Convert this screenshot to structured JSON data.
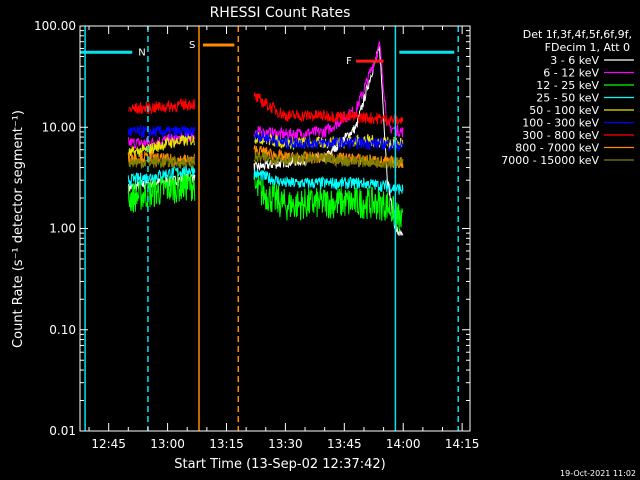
{
  "colors": {
    "background": "#000000",
    "axes": "#ffffff",
    "marker_cyan": "#00e5ee",
    "marker_orange": "#ff8c00",
    "flare_red": "#ff1a1a"
  },
  "chart_data": {
    "type": "line",
    "title": "RHESSI Count Rates",
    "xlabel": "Start Time (13-Sep-02 12:37:42)",
    "ylabel": "Count Rate (s⁻¹ detector segment⁻¹)",
    "yscale": "log",
    "ylim": [
      0.01,
      100
    ],
    "xlim": [
      "12:37:42",
      "14:17:00"
    ],
    "x_ticks": [
      "12:45",
      "13:00",
      "13:15",
      "13:30",
      "13:45",
      "14:00",
      "14:15"
    ],
    "y_ticks": [
      "0.01",
      "0.10",
      "1.00",
      "10.00",
      "100.00"
    ],
    "footer_date": "19-Oct-2021 11:02",
    "legend": {
      "header_lines": [
        "Det 1f,3f,4f,5f,6f,9f,",
        "FDecim 1, Att 0"
      ],
      "position": "right"
    },
    "segments": [
      {
        "start": "12:50:00",
        "end": "13:07:00"
      },
      {
        "start": "13:22:00",
        "end": "14:00:00"
      }
    ],
    "series": [
      {
        "name": "3 - 6 keV",
        "color": "#ffffff",
        "values": [
          [
            "12:50",
            2.5
          ],
          [
            "12:55",
            2.8
          ],
          [
            "13:00",
            2.9
          ],
          [
            "13:06",
            3.2
          ],
          [
            "13:22",
            4.0
          ],
          [
            "13:30",
            4.5
          ],
          [
            "13:40",
            5.0
          ],
          [
            "13:48",
            10.0
          ],
          [
            "13:52",
            35.0
          ],
          [
            "13:54",
            60.0
          ],
          [
            "13:56",
            3.0
          ],
          [
            "13:58",
            1.0
          ],
          [
            "14:00",
            0.8
          ]
        ]
      },
      {
        "name": "6 - 12 keV",
        "color": "#ff00ff",
        "values": [
          [
            "12:50",
            7.0
          ],
          [
            "12:55",
            7.0
          ],
          [
            "13:00",
            7.5
          ],
          [
            "13:06",
            8.0
          ],
          [
            "13:22",
            9.0
          ],
          [
            "13:30",
            8.5
          ],
          [
            "13:40",
            9.0
          ],
          [
            "13:48",
            15.0
          ],
          [
            "13:51",
            30.0
          ],
          [
            "13:54",
            65.0
          ],
          [
            "13:56",
            10.0
          ],
          [
            "14:00",
            9.0
          ]
        ]
      },
      {
        "name": "12 - 25 keV",
        "color": "#00ff00",
        "values": [
          [
            "12:50",
            2.0
          ],
          [
            "12:55",
            2.2
          ],
          [
            "13:00",
            2.5
          ],
          [
            "13:06",
            2.7
          ],
          [
            "13:22",
            2.5
          ],
          [
            "13:30",
            1.7
          ],
          [
            "13:40",
            1.8
          ],
          [
            "13:50",
            1.8
          ],
          [
            "13:56",
            1.7
          ],
          [
            "14:00",
            1.1
          ]
        ]
      },
      {
        "name": "25 - 50 keV",
        "color": "#00ffff",
        "values": [
          [
            "12:50",
            3.0
          ],
          [
            "12:55",
            3.2
          ],
          [
            "13:00",
            3.5
          ],
          [
            "13:06",
            3.8
          ],
          [
            "13:22",
            3.5
          ],
          [
            "13:30",
            2.8
          ],
          [
            "13:40",
            2.8
          ],
          [
            "13:50",
            2.8
          ],
          [
            "13:56",
            2.6
          ],
          [
            "14:00",
            2.4
          ]
        ]
      },
      {
        "name": "50 - 100 keV",
        "color": "#e6e600",
        "values": [
          [
            "12:50",
            5.5
          ],
          [
            "12:55",
            6.0
          ],
          [
            "13:00",
            7.0
          ],
          [
            "13:06",
            7.5
          ],
          [
            "13:22",
            8.0
          ],
          [
            "13:30",
            7.0
          ],
          [
            "13:40",
            7.0
          ],
          [
            "13:50",
            7.5
          ],
          [
            "13:56",
            7.0
          ],
          [
            "14:00",
            7.0
          ]
        ]
      },
      {
        "name": "100 - 300 keV",
        "color": "#0000ff",
        "values": [
          [
            "12:50",
            9.0
          ],
          [
            "12:55",
            9.0
          ],
          [
            "13:00",
            9.0
          ],
          [
            "13:06",
            9.0
          ],
          [
            "13:22",
            8.5
          ],
          [
            "13:30",
            7.0
          ],
          [
            "13:40",
            7.0
          ],
          [
            "13:50",
            7.0
          ],
          [
            "13:56",
            6.8
          ],
          [
            "14:00",
            6.5
          ]
        ]
      },
      {
        "name": "300 - 800 keV",
        "color": "#ff0000",
        "values": [
          [
            "12:50",
            15.0
          ],
          [
            "12:55",
            15.5
          ],
          [
            "13:00",
            16.0
          ],
          [
            "13:06",
            17.0
          ],
          [
            "13:22",
            20.0
          ],
          [
            "13:30",
            13.0
          ],
          [
            "13:40",
            13.0
          ],
          [
            "13:50",
            12.5
          ],
          [
            "13:56",
            12.0
          ],
          [
            "14:00",
            11.5
          ]
        ]
      },
      {
        "name": "800 - 7000 keV",
        "color": "#ff8c00",
        "values": [
          [
            "12:50",
            5.0
          ],
          [
            "12:55",
            5.0
          ],
          [
            "13:00",
            4.8
          ],
          [
            "13:06",
            4.7
          ],
          [
            "13:22",
            6.0
          ],
          [
            "13:30",
            5.0
          ],
          [
            "13:40",
            5.0
          ],
          [
            "13:50",
            4.8
          ],
          [
            "13:56",
            4.5
          ],
          [
            "14:00",
            4.5
          ]
        ]
      },
      {
        "name": "7000 - 15000 keV",
        "color": "#808000",
        "values": [
          [
            "12:50",
            4.5
          ],
          [
            "12:55",
            4.5
          ],
          [
            "13:00",
            4.5
          ],
          [
            "13:06",
            4.5
          ],
          [
            "13:22",
            5.0
          ],
          [
            "13:30",
            4.8
          ],
          [
            "13:40",
            4.8
          ],
          [
            "13:50",
            4.6
          ],
          [
            "13:56",
            4.5
          ],
          [
            "14:00",
            4.4
          ]
        ]
      }
    ],
    "annotations": [
      {
        "label": "N",
        "color": "#00e5ee",
        "bar": [
          "12:37:42",
          "12:51:00"
        ],
        "level": 55,
        "line": "12:55:00",
        "line_style": "dashed"
      },
      {
        "label": "",
        "color": "#00e5ee",
        "line": "12:39:00",
        "line_style": "solid"
      },
      {
        "label": "S",
        "color": "#ff8c00",
        "bar": [
          "13:09:00",
          "13:17:00"
        ],
        "level": 65,
        "line": "13:08:00",
        "line_style": "solid"
      },
      {
        "label": "",
        "color": "#ff8c00",
        "line": "13:18:00",
        "line_style": "dashed"
      },
      {
        "label": "F",
        "color": "#ff1a1a",
        "bar": [
          "13:48:00",
          "13:55:00"
        ],
        "level": 45
      },
      {
        "label": "",
        "color": "#00e5ee",
        "bar": [
          "13:59:00",
          "14:13:00"
        ],
        "level": 55,
        "line": "13:58:00",
        "line_style": "solid"
      },
      {
        "label": "",
        "color": "#00e5ee",
        "line": "14:14:00",
        "line_style": "dashed"
      }
    ]
  }
}
